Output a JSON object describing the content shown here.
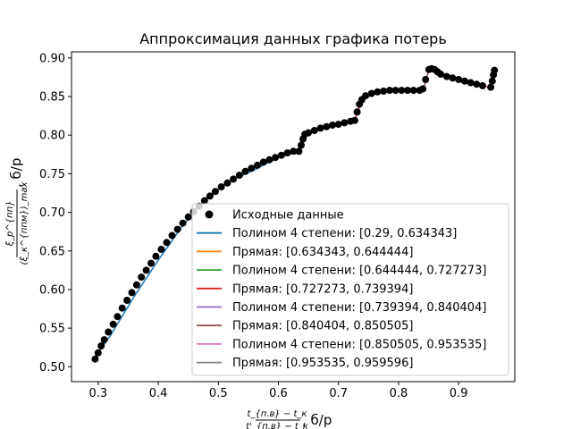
{
  "chart_data": {
    "type": "line",
    "title": "Аппроксимация данных графика потерь",
    "xlabel": {
      "numerator": "t_{п.в} − t_к",
      "denominator": "t'_{п.в} − t_к",
      "unit": ", б/р"
    },
    "ylabel": {
      "numerator": "ξ_р^{пп}",
      "denominator": "(ξ_к^{ппм})_max",
      "unit": ", б/р"
    },
    "xlim": [
      0.2556,
      0.9935
    ],
    "ylim": [
      0.4807,
      0.9079
    ],
    "xticks": [
      0.3,
      0.4,
      0.5,
      0.6,
      0.7,
      0.8,
      0.9
    ],
    "yticks": [
      0.5,
      0.55,
      0.6,
      0.65,
      0.7,
      0.75,
      0.8,
      0.85,
      0.9
    ],
    "grid": false,
    "legend_position": "lower-right",
    "scatter": {
      "name": "Исходные данные",
      "color": "#000000",
      "x": [
        0.295,
        0.3,
        0.305,
        0.31,
        0.317,
        0.325,
        0.332,
        0.34,
        0.348,
        0.356,
        0.364,
        0.372,
        0.38,
        0.388,
        0.396,
        0.405,
        0.414,
        0.423,
        0.432,
        0.441,
        0.45,
        0.459,
        0.468,
        0.477,
        0.486,
        0.495,
        0.505,
        0.515,
        0.525,
        0.535,
        0.545,
        0.555,
        0.565,
        0.575,
        0.585,
        0.595,
        0.605,
        0.615,
        0.625,
        0.634,
        0.638,
        0.641,
        0.644,
        0.65,
        0.66,
        0.67,
        0.68,
        0.69,
        0.7,
        0.71,
        0.72,
        0.727,
        0.731,
        0.735,
        0.739,
        0.745,
        0.755,
        0.765,
        0.775,
        0.785,
        0.795,
        0.805,
        0.815,
        0.825,
        0.835,
        0.8404,
        0.845,
        0.8505,
        0.855,
        0.86,
        0.865,
        0.87,
        0.88,
        0.89,
        0.9,
        0.91,
        0.92,
        0.93,
        0.94,
        0.9535,
        0.956,
        0.958,
        0.9596
      ],
      "y": [
        0.51,
        0.518,
        0.527,
        0.535,
        0.545,
        0.555,
        0.565,
        0.576,
        0.586,
        0.596,
        0.606,
        0.616,
        0.625,
        0.634,
        0.643,
        0.652,
        0.661,
        0.67,
        0.678,
        0.686,
        0.694,
        0.701,
        0.708,
        0.715,
        0.721,
        0.727,
        0.733,
        0.738,
        0.743,
        0.748,
        0.753,
        0.757,
        0.761,
        0.765,
        0.768,
        0.771,
        0.774,
        0.777,
        0.779,
        0.779,
        0.787,
        0.795,
        0.801,
        0.803,
        0.806,
        0.809,
        0.811,
        0.813,
        0.814,
        0.816,
        0.818,
        0.819,
        0.83,
        0.84,
        0.846,
        0.851,
        0.854,
        0.856,
        0.857,
        0.858,
        0.858,
        0.858,
        0.858,
        0.858,
        0.858,
        0.86,
        0.872,
        0.885,
        0.886,
        0.885,
        0.882,
        0.879,
        0.876,
        0.874,
        0.872,
        0.87,
        0.868,
        0.866,
        0.864,
        0.862,
        0.87,
        0.878,
        0.884
      ]
    },
    "series": [
      {
        "name": "Полином 4 степени: [0.29, 0.634343]",
        "color": "#1f77b4",
        "x": [
          0.29,
          0.32,
          0.36,
          0.4,
          0.44,
          0.48,
          0.52,
          0.56,
          0.6,
          0.634343
        ],
        "y": [
          0.507,
          0.54,
          0.591,
          0.638,
          0.682,
          0.719,
          0.741,
          0.755,
          0.771,
          0.779
        ]
      },
      {
        "name": "Прямая: [0.634343, 0.644444]",
        "color": "#ff7f0e",
        "x": [
          0.634343,
          0.644444
        ],
        "y": [
          0.779,
          0.801
        ]
      },
      {
        "name": "Полином 4 степени: [0.644444, 0.727273]",
        "color": "#2ca02c",
        "x": [
          0.644444,
          0.66,
          0.68,
          0.7,
          0.72,
          0.727273
        ],
        "y": [
          0.801,
          0.806,
          0.811,
          0.814,
          0.818,
          0.819
        ]
      },
      {
        "name": "Прямая: [0.727273, 0.739394]",
        "color": "#d62728",
        "x": [
          0.727273,
          0.739394
        ],
        "y": [
          0.819,
          0.846
        ]
      },
      {
        "name": "Полином 4 степени: [0.739394, 0.840404]",
        "color": "#9467bd",
        "x": [
          0.739394,
          0.76,
          0.78,
          0.8,
          0.82,
          0.840404
        ],
        "y": [
          0.846,
          0.853,
          0.856,
          0.858,
          0.858,
          0.858
        ]
      },
      {
        "name": "Прямая: [0.840404, 0.850505]",
        "color": "#8c564b",
        "x": [
          0.840404,
          0.850505
        ],
        "y": [
          0.858,
          0.885
        ]
      },
      {
        "name": "Полином 4 степени: [0.850505, 0.953535]",
        "color": "#e377c2",
        "x": [
          0.850505,
          0.86,
          0.88,
          0.9,
          0.92,
          0.94,
          0.953535
        ],
        "y": [
          0.885,
          0.885,
          0.877,
          0.872,
          0.867,
          0.864,
          0.862
        ]
      },
      {
        "name": "Прямая: [0.953535, 0.959596]",
        "color": "#7f7f7f",
        "x": [
          0.953535,
          0.959596
        ],
        "y": [
          0.862,
          0.884
        ]
      }
    ]
  }
}
